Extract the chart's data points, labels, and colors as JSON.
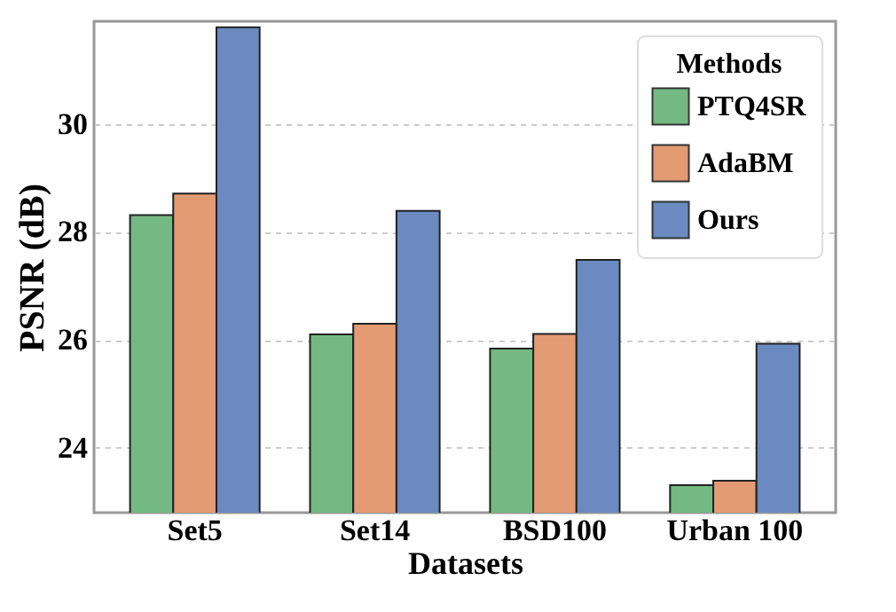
{
  "chart_data": {
    "type": "bar",
    "xlabel": "Datasets",
    "ylabel": "PSNR (dB)",
    "legend_title": "Methods",
    "categories": [
      "Set5",
      "Set14",
      "BSD100",
      "Urban 100"
    ],
    "series": [
      {
        "name": "PTQ4SR",
        "color": "#74b983",
        "values": [
          28.31,
          26.1,
          25.84,
          23.31
        ]
      },
      {
        "name": "AdaBM",
        "color": "#e39b74",
        "values": [
          28.71,
          26.3,
          26.11,
          23.39
        ]
      },
      {
        "name": "Ours",
        "color": "#6b8abf",
        "values": [
          31.79,
          28.39,
          27.48,
          25.93
        ]
      }
    ],
    "ylim": [
      22.8,
      31.9
    ],
    "yticks": [
      24,
      26,
      28,
      30
    ],
    "grid": "y",
    "legend": "top right"
  }
}
